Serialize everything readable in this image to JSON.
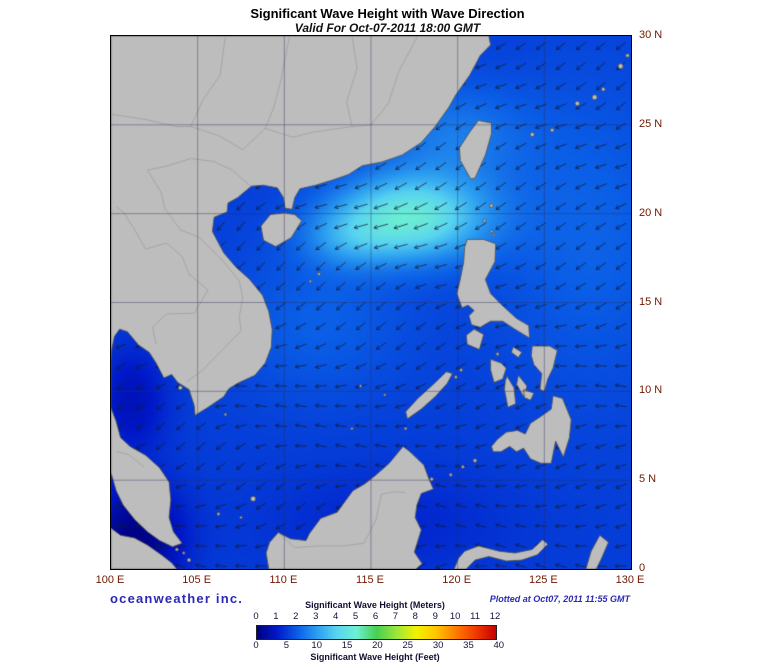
{
  "header": {
    "title": "Significant Wave Height with Wave Direction",
    "subtitle": "Valid For Oct-07-2011 18:00 GMT"
  },
  "map": {
    "lat_labels": [
      "30 N",
      "25 N",
      "20 N",
      "15 N",
      "10 N",
      "5 N",
      "0"
    ],
    "lon_labels": [
      "100 E",
      "105 E",
      "110 E",
      "115 E",
      "120 E",
      "125 E",
      "130 E"
    ],
    "extent": {
      "lon_min": 100,
      "lon_max": 130,
      "lat_min": 0,
      "lat_max": 30
    }
  },
  "colorbar": {
    "meters_title": "Significant Wave Height (Meters)",
    "feet_title": "Significant Wave Height (Feet)",
    "meters_ticks": [
      "0",
      "1",
      "2",
      "3",
      "4",
      "5",
      "6",
      "7",
      "8",
      "9",
      "10",
      "11",
      "12"
    ],
    "feet_ticks": [
      "0",
      "5",
      "10",
      "15",
      "20",
      "25",
      "30",
      "35",
      "40"
    ],
    "stops": [
      "#000080",
      "#0018c8",
      "#0a5ce6",
      "#2b9cf0",
      "#58d4f0",
      "#6ef0d2",
      "#46cf52",
      "#9ce63a",
      "#f2f200",
      "#ffc400",
      "#ff7a00",
      "#f03800",
      "#c40000"
    ]
  },
  "credits": {
    "left": "oceanweather inc.",
    "right": "Plotted at Oct07, 2011 11:55 GMT"
  },
  "colors": {
    "land": "#bdbdbd",
    "coast": "#4f4f4f",
    "interior_border": "#8c8c8c",
    "grid": "rgba(45,45,90,0.6)",
    "arrow": "#101c34",
    "axis_label": "#701800",
    "credit": "#2a2ab4",
    "ocean_low": "#000080",
    "ocean_mid": "#0a5ce6",
    "ocean_peak": "#58d4f0"
  },
  "chart_data": {
    "type": "heatmap",
    "title": "Significant Wave Height with Wave Direction",
    "subtitle": "Valid For Oct-07-2011 18:00 GMT",
    "scale_meters": [
      0,
      1,
      2,
      3,
      4,
      5,
      6,
      7,
      8,
      9,
      10,
      11,
      12
    ],
    "scale_feet": [
      0,
      5,
      10,
      15,
      20,
      25,
      30,
      35,
      40
    ],
    "lon_range": [
      100,
      130
    ],
    "lat_range": [
      0,
      30
    ],
    "notes": "Wave height field over South China Sea; peak ~4-5 m band near 113-121E, 18-21N; ~1.5-2 m over most open water; <0.5 m in Malacca Strait corner; arrows show wave direction (generally toward SW/W)."
  }
}
